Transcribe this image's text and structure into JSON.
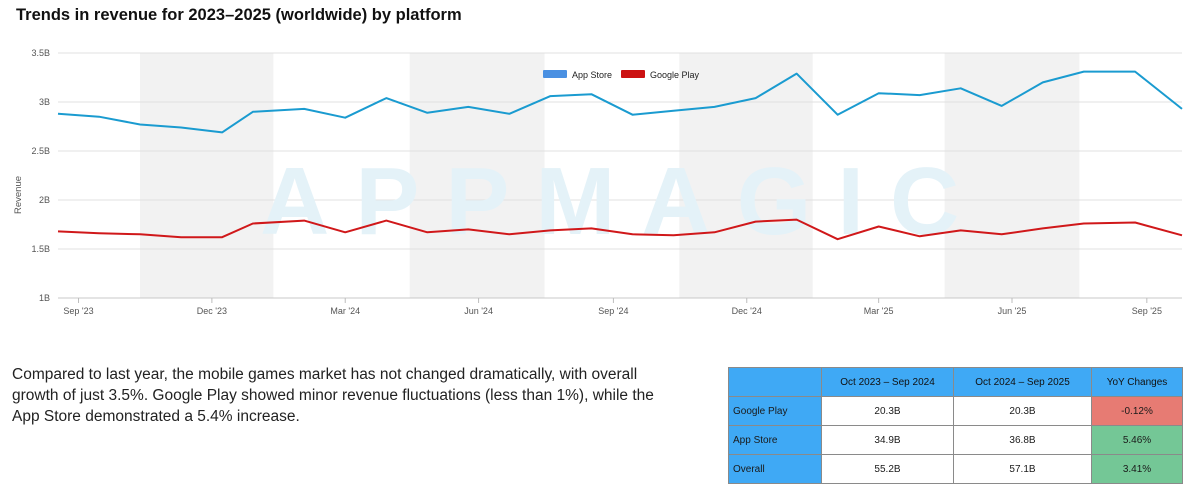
{
  "title": "Trends in revenue for 2023–2025 (worldwide) by platform",
  "colors": {
    "app_store": "#1a9bd0",
    "google_play": "#d0181a",
    "app_store_legend": "#4a90e2",
    "google_play_legend": "#cc1111",
    "shade": "#f2f2f2",
    "header": "#3fa9f5",
    "negative": "#e77b73",
    "positive": "#74c796"
  },
  "watermark": "APPMAGIC",
  "chart_data": {
    "type": "line",
    "title": "Trends in revenue for 2023–2025 (worldwide) by platform",
    "ylabel": "Revenue",
    "xlabel": "",
    "ylim": [
      1000000000,
      3500000000
    ],
    "yticks": [
      {
        "value": 1000000000,
        "label": "1B"
      },
      {
        "value": 1500000000,
        "label": "1.5B"
      },
      {
        "value": 2000000000,
        "label": "2B"
      },
      {
        "value": 2500000000,
        "label": "2.5B"
      },
      {
        "value": 3000000000,
        "label": "3B"
      },
      {
        "value": 3500000000,
        "label": "3.5B"
      }
    ],
    "x_range_days": [
      0,
      767
    ],
    "xticks": [
      {
        "day": 14,
        "label": "Sep '23"
      },
      {
        "day": 105,
        "label": "Dec '23"
      },
      {
        "day": 196,
        "label": "Mar '24"
      },
      {
        "day": 287,
        "label": "Jun '24"
      },
      {
        "day": 379,
        "label": "Sep '24"
      },
      {
        "day": 470,
        "label": "Dec '24"
      },
      {
        "day": 560,
        "label": "Mar '25"
      },
      {
        "day": 651,
        "label": "Jun '25"
      },
      {
        "day": 743,
        "label": "Sep '25"
      }
    ],
    "shaded_ranges_days": [
      [
        56,
        147
      ],
      [
        240,
        332
      ],
      [
        424,
        515
      ],
      [
        605,
        697
      ]
    ],
    "x_days": [
      0,
      28,
      56,
      84,
      112,
      133,
      168,
      196,
      224,
      252,
      280,
      308,
      336,
      364,
      392,
      420,
      448,
      476,
      504,
      532,
      560,
      588,
      616,
      644,
      672,
      700,
      735,
      767
    ],
    "series": [
      {
        "name": "App Store",
        "values": [
          2880000000,
          2850000000,
          2770000000,
          2740000000,
          2690000000,
          2900000000,
          2930000000,
          2840000000,
          3040000000,
          2890000000,
          2950000000,
          2880000000,
          3060000000,
          3080000000,
          2870000000,
          2910000000,
          2950000000,
          3040000000,
          3290000000,
          2870000000,
          3090000000,
          3070000000,
          3140000000,
          2960000000,
          3200000000,
          3310000000,
          3310000000,
          2930000000
        ]
      },
      {
        "name": "Google Play",
        "values": [
          1680000000,
          1660000000,
          1650000000,
          1620000000,
          1620000000,
          1760000000,
          1790000000,
          1670000000,
          1790000000,
          1670000000,
          1700000000,
          1650000000,
          1690000000,
          1710000000,
          1650000000,
          1640000000,
          1670000000,
          1780000000,
          1800000000,
          1600000000,
          1730000000,
          1630000000,
          1690000000,
          1650000000,
          1710000000,
          1760000000,
          1770000000,
          1640000000
        ]
      }
    ],
    "legend": [
      {
        "label": "App Store",
        "color": "#4a90e2"
      },
      {
        "label": "Google Play",
        "color": "#cc1111"
      }
    ],
    "legend_position": "top-center"
  },
  "summary": "Compared to last year, the mobile games market has not changed dramatically, with overall growth of just 3.5%. Google Play showed minor revenue fluctuations (less than 1%), while the App Store demonstrated a 5.4% increase.",
  "table": {
    "headers": [
      "",
      "Oct 2023 – Sep 2024",
      "Oct 2024 – Sep 2025",
      "YoY Changes"
    ],
    "rows": [
      {
        "label": "Google Play",
        "v1": "20.3B",
        "v2": "20.3B",
        "change": "-0.12%",
        "trend": "negative"
      },
      {
        "label": "App Store",
        "v1": "34.9B",
        "v2": "36.8B",
        "change": "5.46%",
        "trend": "positive"
      },
      {
        "label": "Overall",
        "v1": "55.2B",
        "v2": "57.1B",
        "change": "3.41%",
        "trend": "positive"
      }
    ]
  }
}
